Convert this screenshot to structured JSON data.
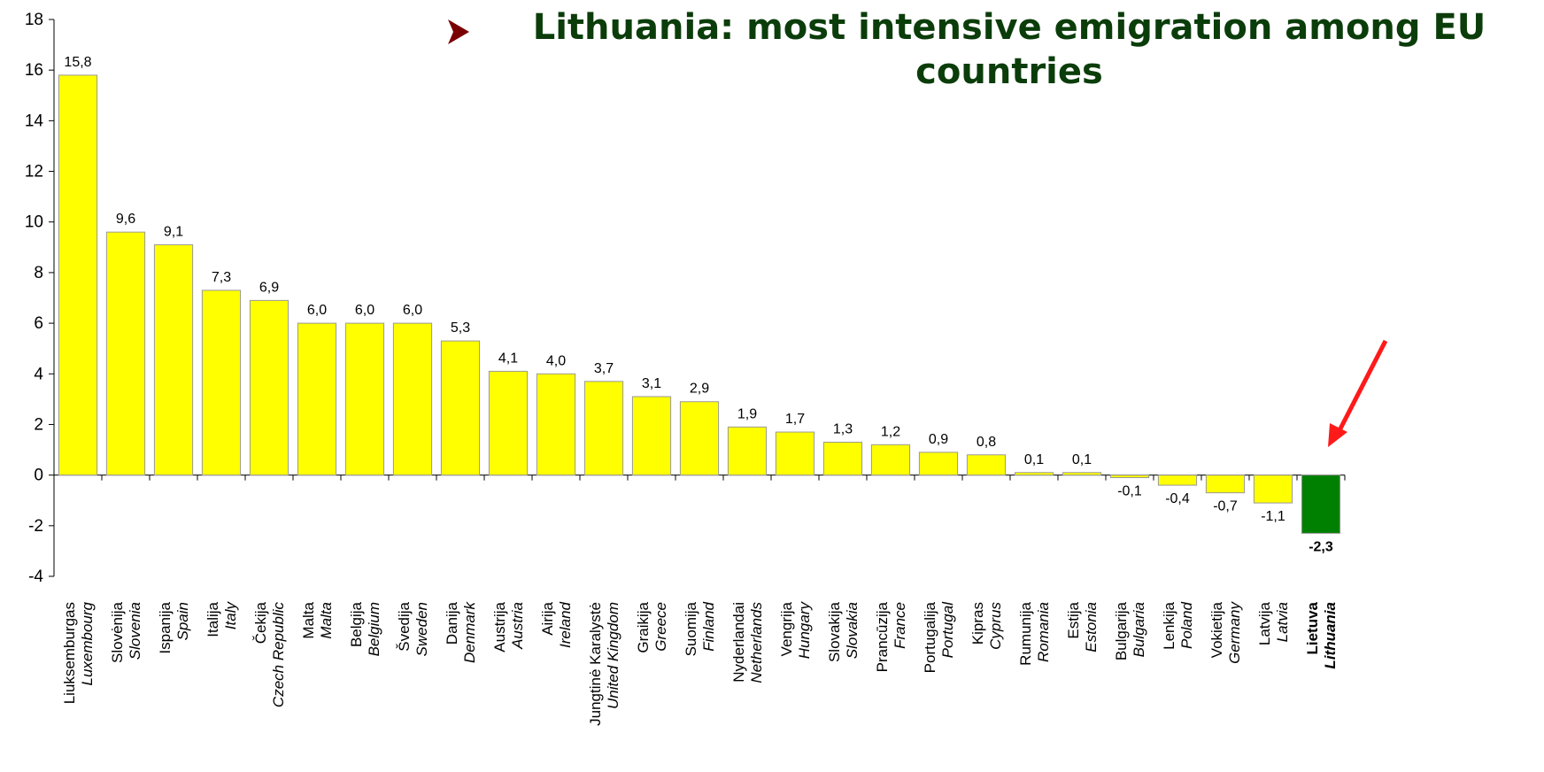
{
  "chart_data": {
    "type": "bar",
    "title": "Lithuania: most intensive emigration among EU countries",
    "categories": [
      "Liuksemburgas",
      "Slovėnija",
      "Ispanija",
      "Italija",
      "Čekija",
      "Malta",
      "Belgija",
      "Švedija",
      "Danija",
      "Austrija",
      "Airija",
      "Jungtinė Karalystė",
      "Graikija",
      "Suomija",
      "Nyderlandai",
      "Vengrija",
      "Slovakija",
      "Prancūzija",
      "Portugalija",
      "Kipras",
      "Rumunija",
      "Estija",
      "Bulgarija",
      "Lenkija",
      "Vokietija",
      "Latvija",
      "Lietuva"
    ],
    "categories_en": [
      "Luxembourg",
      "Slovenia",
      "Spain",
      "Italy",
      "Czech Republic",
      "Malta",
      "Belgium",
      "Sweden",
      "Denmark",
      "Austria",
      "Ireland",
      "United Kingdom",
      "Greece",
      "Finland",
      "Netherlands",
      "Hungary",
      "Slovakia",
      "France",
      "Portugal",
      "Cyprus",
      "Romania",
      "Estonia",
      "Bulgaria",
      "Poland",
      "Germany",
      "Latvia",
      "Lithuania"
    ],
    "values": [
      15.8,
      9.6,
      9.1,
      7.3,
      6.9,
      6.0,
      6.0,
      6.0,
      5.3,
      4.1,
      4.0,
      3.7,
      3.1,
      2.9,
      1.9,
      1.7,
      1.3,
      1.2,
      0.9,
      0.8,
      0.1,
      0.1,
      -0.1,
      -0.4,
      -0.7,
      -1.1,
      -2.3
    ],
    "value_labels": [
      "15,8",
      "9,6",
      "9,1",
      "7,3",
      "6,9",
      "6,0",
      "6,0",
      "6,0",
      "5,3",
      "4,1",
      "4,0",
      "3,7",
      "3,1",
      "2,9",
      "1,9",
      "1,7",
      "1,3",
      "1,2",
      "0,9",
      "0,8",
      "0,1",
      "0,1",
      "-0,1",
      "-0,4",
      "-0,7",
      "-1,1",
      "-2,3"
    ],
    "colors": [
      "#ffff00",
      "#ffff00",
      "#ffff00",
      "#ffff00",
      "#ffff00",
      "#ffff00",
      "#ffff00",
      "#ffff00",
      "#ffff00",
      "#ffff00",
      "#ffff00",
      "#ffff00",
      "#ffff00",
      "#ffff00",
      "#ffff00",
      "#ffff00",
      "#ffff00",
      "#ffff00",
      "#ffff00",
      "#ffff00",
      "#ffff00",
      "#ffff00",
      "#ffff00",
      "#ffff00",
      "#ffff00",
      "#ffff00",
      "#008000"
    ],
    "ylim": [
      -4,
      18
    ],
    "yticks": [
      -4,
      -2,
      0,
      2,
      4,
      6,
      8,
      10,
      12,
      14,
      16,
      18
    ],
    "grid": false
  }
}
